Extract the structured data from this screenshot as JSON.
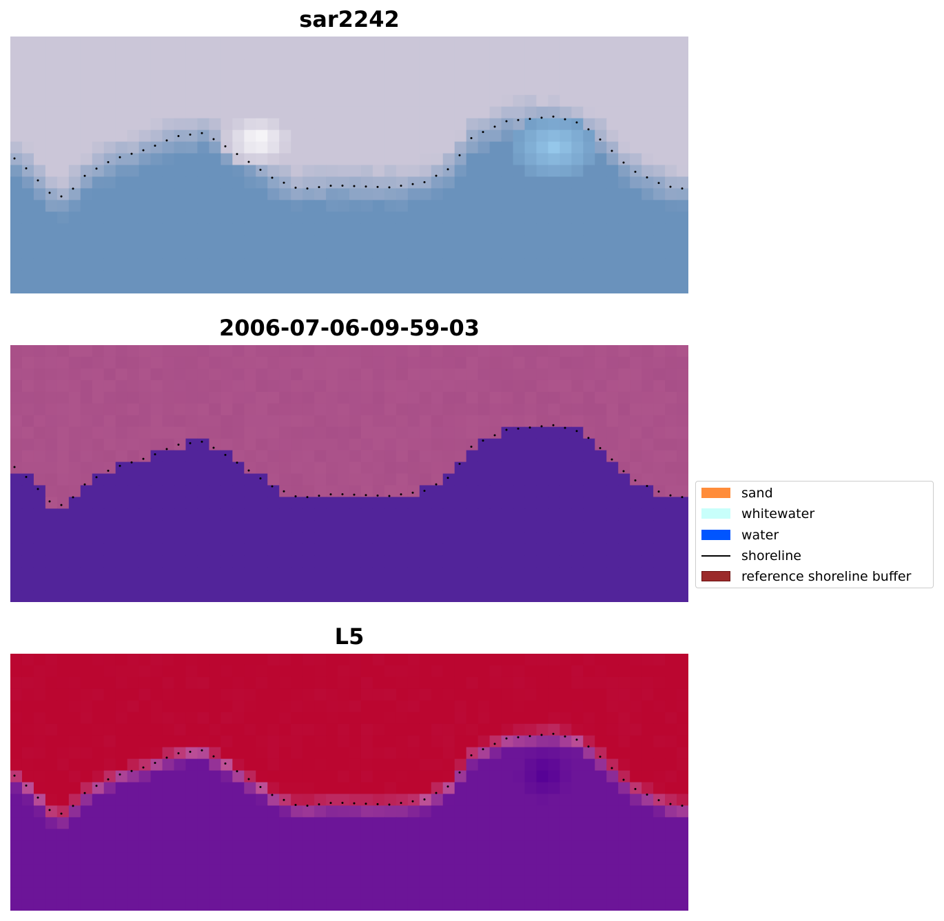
{
  "panels": [
    {
      "title": "sar2242",
      "style": "rgb"
    },
    {
      "title": "2006-07-06-09-59-03",
      "style": "classified"
    },
    {
      "title": "L5",
      "style": "index"
    }
  ],
  "legend": {
    "items": [
      {
        "label": "sand",
        "color": "#ff8c3a",
        "kind": "patch",
        "edge": "#ff8c3a"
      },
      {
        "label": "whitewater",
        "color": "#c8fffb",
        "kind": "patch",
        "edge": "#c8fffb"
      },
      {
        "label": "water",
        "color": "#0055ff",
        "kind": "patch",
        "edge": "#0055ff"
      },
      {
        "label": "shoreline",
        "color": "#000000",
        "kind": "line",
        "edge": "#000000"
      },
      {
        "label": "reference shoreline buffer",
        "color": "#9b2a2a",
        "kind": "patch",
        "edge": "#6b1010"
      }
    ]
  },
  "colors": {
    "rgb_land": "#cbc6d8",
    "rgb_water": "#6a92bc",
    "classified_land": "#a84f88",
    "classified_water": "#52249a",
    "index_land": "#bb0630",
    "index_water": "#6c1598",
    "shoreline_dots": "#000000"
  }
}
